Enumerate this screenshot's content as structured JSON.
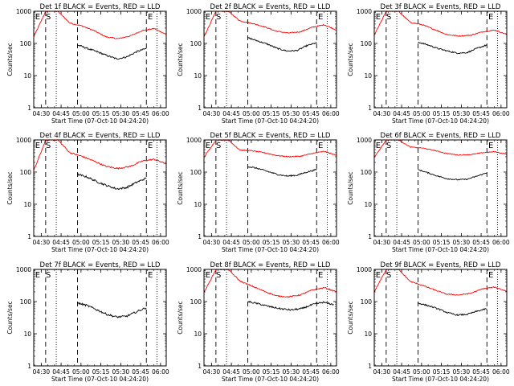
{
  "figure": {
    "background": "#ffffff"
  },
  "chart_data": {
    "type": "line",
    "xaxis": {
      "label": "Start Time (07-Oct-10 04:24:20)",
      "ticks": [
        "04:30",
        "04:45",
        "05:00",
        "05:15",
        "05:30",
        "05:45",
        "06:00"
      ],
      "tick_minutes": [
        5.67,
        20.67,
        35.67,
        50.67,
        65.67,
        80.67,
        95.67
      ],
      "range_minutes": [
        0,
        100
      ]
    },
    "yaxis": {
      "label": "Counts/sec",
      "scale": "log",
      "range": [
        1,
        1000
      ],
      "ticks": [
        "1",
        "10",
        "100",
        "1000"
      ]
    },
    "markers": {
      "E": "E",
      "S": "S"
    },
    "colors": {
      "events": "#000000",
      "lld": "#ff0000"
    },
    "panels": [
      {
        "title": "Det 1f BLACK = Events, RED = LLD",
        "dashed": [
          9,
          33,
          85
        ],
        "dotted": [
          17,
          93
        ],
        "events": {
          "start": 33,
          "end": 85,
          "values": [
            90,
            70,
            55,
            42,
            33,
            38,
            55,
            70
          ],
          "noise": 0.06
        },
        "lld": {
          "values": [
            160,
            1000,
            1000,
            430,
            350,
            250,
            160,
            140,
            170,
            250,
            290,
            190
          ],
          "noise": 0.035
        }
      },
      {
        "title": "Det 2f BLACK = Events, RED = LLD",
        "dashed": [
          9,
          33,
          85
        ],
        "dotted": [
          17,
          93
        ],
        "events": {
          "start": 33,
          "end": 85,
          "values": [
            150,
            120,
            95,
            70,
            58,
            60,
            85,
            105
          ],
          "noise": 0.05
        },
        "lld": {
          "values": [
            160,
            1000,
            1000,
            500,
            420,
            330,
            240,
            210,
            230,
            320,
            380,
            260
          ],
          "noise": 0.035
        }
      },
      {
        "title": "Det 3f BLACK = Events, RED = LLD",
        "dashed": [
          9,
          33,
          85
        ],
        "dotted": [
          17,
          93
        ],
        "events": {
          "start": 33,
          "end": 85,
          "values": [
            110,
            90,
            70,
            58,
            50,
            52,
            70,
            90
          ],
          "noise": 0.05
        },
        "lld": {
          "values": [
            180,
            1000,
            1000,
            450,
            380,
            270,
            190,
            170,
            180,
            230,
            260,
            190
          ],
          "noise": 0.035
        }
      },
      {
        "title": "Det 4f BLACK = Events, RED = LLD",
        "dashed": [
          9,
          33,
          85
        ],
        "dotted": [
          17,
          93
        ],
        "events": {
          "start": 33,
          "end": 85,
          "values": [
            85,
            70,
            50,
            38,
            30,
            33,
            48,
            65
          ],
          "noise": 0.07
        },
        "lld": {
          "values": [
            110,
            1000,
            1000,
            400,
            310,
            220,
            150,
            130,
            150,
            220,
            250,
            180
          ],
          "noise": 0.05
        }
      },
      {
        "title": "Det 5f BLACK = Events, RED = LLD",
        "dashed": [
          9,
          33,
          85
        ],
        "dotted": [
          17,
          93
        ],
        "events": {
          "start": 33,
          "end": 85,
          "values": [
            150,
            130,
            105,
            85,
            75,
            80,
            100,
            120
          ],
          "noise": 0.05
        },
        "lld": {
          "values": [
            290,
            1000,
            1000,
            480,
            460,
            400,
            330,
            300,
            310,
            380,
            440,
            330
          ],
          "noise": 0.035
        }
      },
      {
        "title": "Det 6f BLACK = Events, RED = LLD",
        "dashed": [
          9,
          33,
          85
        ],
        "dotted": [
          17,
          93
        ],
        "events": {
          "start": 33,
          "end": 85,
          "values": [
            120,
            95,
            75,
            62,
            58,
            60,
            75,
            95
          ],
          "noise": 0.04
        },
        "lld": {
          "values": [
            290,
            1000,
            1000,
            600,
            560,
            470,
            380,
            340,
            350,
            400,
            430,
            360
          ],
          "noise": 0.025
        }
      },
      {
        "title": "Det 7f BLACK = Events, RED = LLD",
        "dashed": [
          9,
          33,
          85
        ],
        "dotted": [
          17,
          93
        ],
        "events": {
          "start": 33,
          "end": 85,
          "values": [
            90,
            75,
            55,
            40,
            33,
            35,
            48,
            65
          ],
          "noise": 0.07
        },
        "lld": {
          "values": [
            1000,
            1000,
            1000,
            1000,
            1000,
            1000,
            1000,
            1000,
            1000,
            1000,
            1000,
            1000
          ],
          "noise": 0.02
        }
      },
      {
        "title": "Det 8f BLACK = Events, RED = LLD",
        "dashed": [
          9,
          33,
          85
        ],
        "dotted": [
          17,
          93
        ],
        "events": {
          "start": 33,
          "end": 98,
          "values": [
            100,
            85,
            70,
            60,
            55,
            60,
            80,
            95,
            80
          ],
          "noise": 0.06
        },
        "lld": {
          "values": [
            190,
            1000,
            1000,
            430,
            300,
            210,
            150,
            140,
            160,
            230,
            270,
            200
          ],
          "noise": 0.04
        }
      },
      {
        "title": "Det 9f BLACK = Events, RED = LLD",
        "dashed": [
          9,
          33,
          85
        ],
        "dotted": [
          17,
          93
        ],
        "events": {
          "start": 33,
          "end": 85,
          "values": [
            90,
            75,
            60,
            45,
            38,
            40,
            50,
            60
          ],
          "noise": 0.05
        },
        "lld": {
          "values": [
            200,
            1000,
            1000,
            420,
            320,
            230,
            170,
            160,
            180,
            250,
            280,
            210
          ],
          "noise": 0.035
        }
      }
    ]
  }
}
